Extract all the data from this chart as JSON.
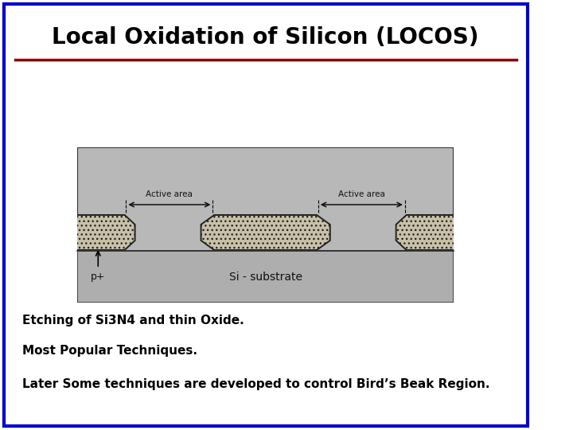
{
  "title": "Local Oxidation of Silicon (LOCOS)",
  "title_fontsize": 20,
  "title_color": "#000000",
  "border_color": "#0000cc",
  "border_linewidth": 3,
  "separator_color": "#8B0000",
  "separator_linewidth": 2.5,
  "bg_color": "#ffffff",
  "diagram_bg": "#b8b8b8",
  "text_lines": [
    "Etching of Si3N4 and thin Oxide.",
    "Most Popular Techniques.",
    "Later Some techniques are developed to control Bird’s Beak Region."
  ],
  "text_fontsize": 11,
  "text_color": "#000000",
  "substrate_label": "Si - substrate",
  "p_plus_label": "p+"
}
